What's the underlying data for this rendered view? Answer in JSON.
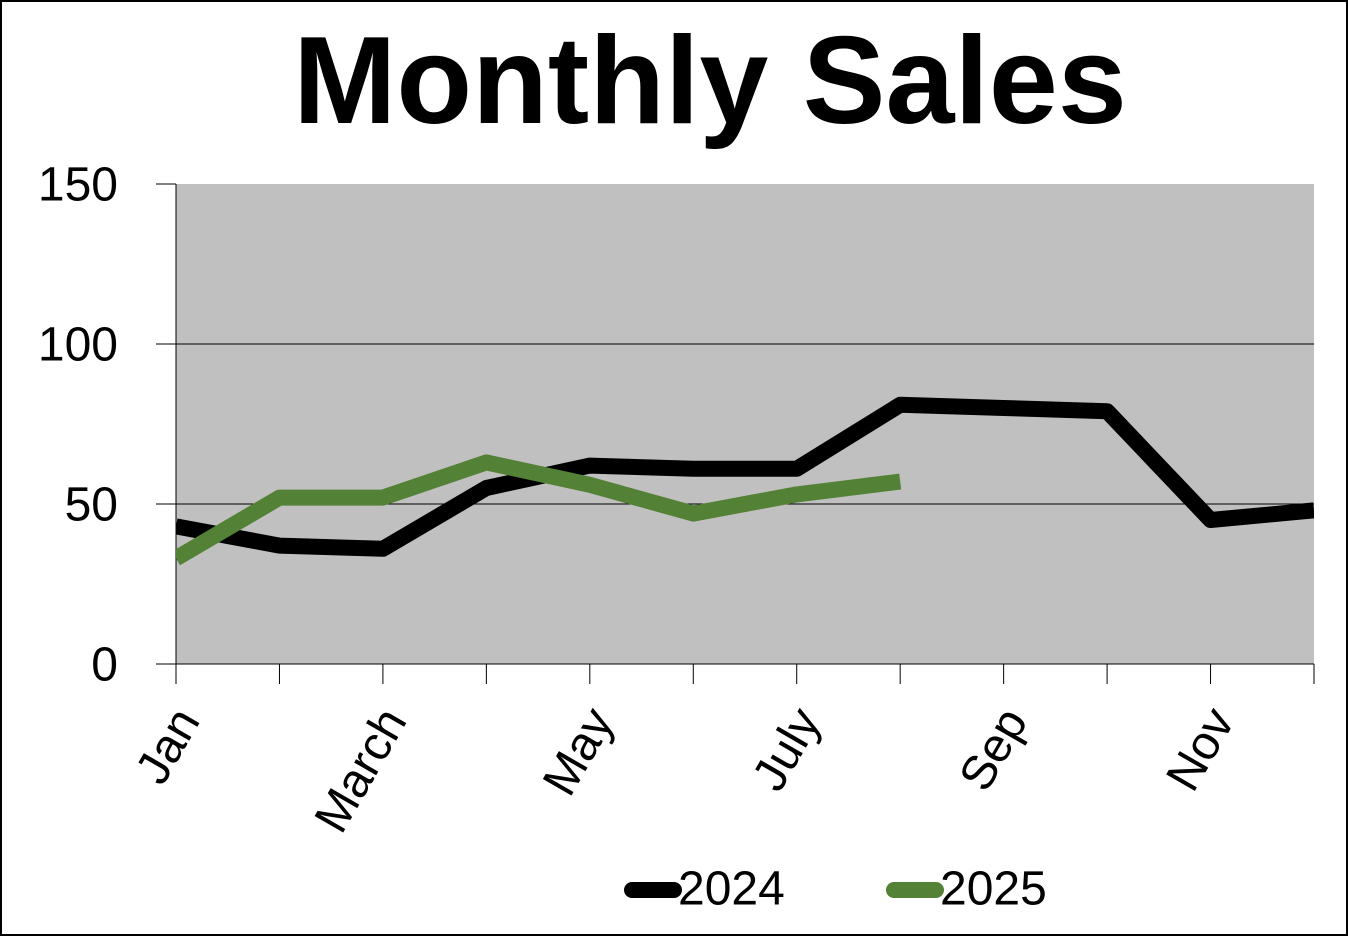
{
  "chart_data": {
    "type": "line",
    "title": "Monthly Sales",
    "categories": [
      "Jan",
      null,
      "March",
      null,
      "May",
      null,
      "July",
      null,
      "Sep",
      null,
      "Nov",
      null
    ],
    "series": [
      {
        "name": "2024",
        "color": "#000000",
        "values": [
          43,
          37,
          36,
          55,
          62,
          61,
          61,
          81,
          80,
          79,
          45,
          48
        ]
      },
      {
        "name": "2025",
        "color": "#538135",
        "values": [
          33,
          52,
          52,
          63,
          56,
          47,
          53,
          57,
          null,
          null,
          null,
          null
        ]
      }
    ],
    "ylim": [
      0,
      150
    ],
    "yticks": [
      0,
      50,
      100,
      150
    ],
    "grid": true,
    "legend": "bottom"
  }
}
